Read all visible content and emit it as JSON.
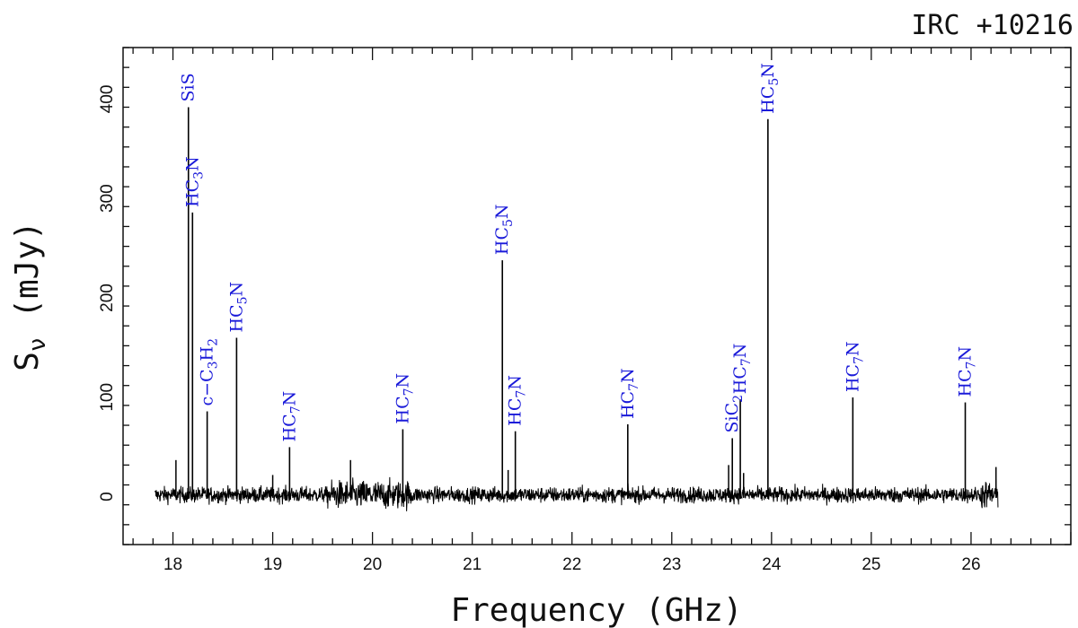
{
  "chart_data": {
    "type": "line",
    "title": "IRC +10216",
    "xlabel": "Frequency (GHz)",
    "ylabel_base": "S",
    "ylabel_sub": "ν",
    "ylabel_rest": " (mJy)",
    "xlim": [
      17.5,
      27.0
    ],
    "ylim": [
      -50,
      450
    ],
    "x_ticks": [
      18,
      19,
      20,
      21,
      22,
      23,
      24,
      25,
      26
    ],
    "y_ticks": [
      0,
      100,
      200,
      300,
      400
    ],
    "noise_range": [
      17.82,
      26.27
    ],
    "noise_rms": 4,
    "lines": [
      {
        "freq": 18.155,
        "peak": 390,
        "mol_main": "SiS",
        "mol_sub": "",
        "mol_after": ""
      },
      {
        "freq": 18.196,
        "peak": 284,
        "mol_main": "HC",
        "mol_sub": "3",
        "mol_after": "N"
      },
      {
        "freq": 18.343,
        "peak": 84,
        "mol_main": "c−C",
        "mol_sub": "3",
        "mol_after": "H",
        "mol_sub2": "2"
      },
      {
        "freq": 18.638,
        "peak": 158,
        "mol_main": "HC",
        "mol_sub": "5",
        "mol_after": "N"
      },
      {
        "freq": 19.169,
        "peak": 48,
        "mol_main": "HC",
        "mol_sub": "7",
        "mol_after": "N"
      },
      {
        "freq": 20.304,
        "peak": 66,
        "mol_main": "HC",
        "mol_sub": "7",
        "mol_after": "N"
      },
      {
        "freq": 21.302,
        "peak": 236,
        "mol_main": "HC",
        "mol_sub": "5",
        "mol_after": "N"
      },
      {
        "freq": 21.432,
        "peak": 64,
        "mol_main": "HC",
        "mol_sub": "7",
        "mol_after": "N"
      },
      {
        "freq": 22.559,
        "peak": 71,
        "mol_main": "HC",
        "mol_sub": "7",
        "mol_after": "N"
      },
      {
        "freq": 23.607,
        "peak": 57,
        "mol_main": "SiC",
        "mol_sub": "2",
        "mol_after": ""
      },
      {
        "freq": 23.687,
        "peak": 96,
        "mol_main": "HC",
        "mol_sub": "7",
        "mol_after": "N"
      },
      {
        "freq": 23.964,
        "peak": 378,
        "mol_main": "HC",
        "mol_sub": "5",
        "mol_after": "N"
      },
      {
        "freq": 24.815,
        "peak": 98,
        "mol_main": "HC",
        "mol_sub": "7",
        "mol_after": "N"
      },
      {
        "freq": 25.942,
        "peak": 93,
        "mol_main": "HC",
        "mol_sub": "7",
        "mol_after": "N"
      }
    ],
    "minor_lines": [
      {
        "freq": 18.03,
        "peak": 35
      },
      {
        "freq": 19.0,
        "peak": 20
      },
      {
        "freq": 19.78,
        "peak": 35
      },
      {
        "freq": 21.36,
        "peak": 25
      },
      {
        "freq": 23.57,
        "peak": 30
      },
      {
        "freq": 23.72,
        "peak": 22
      },
      {
        "freq": 26.25,
        "peak": 28
      }
    ]
  }
}
